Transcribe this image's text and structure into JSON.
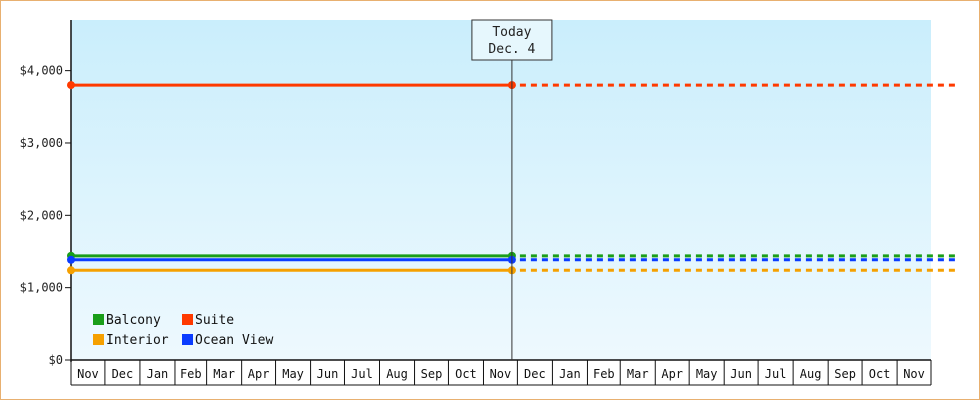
{
  "chart_data": {
    "type": "line",
    "title": "",
    "xlabel": "",
    "ylabel": "",
    "ylim": [
      0,
      4700
    ],
    "y_ticks": [
      0,
      1000,
      2000,
      3000,
      4000
    ],
    "y_tick_labels": [
      "$0",
      "$1,000",
      "$2,000",
      "$3,000",
      "$4,000"
    ],
    "x_months": [
      "Nov",
      "Dec",
      "Jan",
      "Feb",
      "Mar",
      "Apr",
      "May",
      "Jun",
      "Jul",
      "Aug",
      "Sep",
      "Oct",
      "Nov",
      "Dec",
      "Jan",
      "Feb",
      "Mar",
      "Apr",
      "May",
      "Jun",
      "Jul",
      "Aug",
      "Sep",
      "Oct",
      "Nov"
    ],
    "today": {
      "line1": "Today",
      "line2": "Dec. 4",
      "month_index": 13
    },
    "series": [
      {
        "name": "Suite",
        "color": "#ff3a00",
        "value": 3800
      },
      {
        "name": "Balcony",
        "color": "#1a9e1a",
        "value": 1440
      },
      {
        "name": "Ocean View",
        "color": "#0a3cff",
        "value": 1385
      },
      {
        "name": "Interior",
        "color": "#f5a000",
        "value": 1240
      }
    ],
    "legend": [
      {
        "name": "Balcony",
        "color": "#1a9e1a"
      },
      {
        "name": "Suite",
        "color": "#ff3a00"
      },
      {
        "name": "Interior",
        "color": "#f5a000"
      },
      {
        "name": "Ocean View",
        "color": "#0a3cff"
      }
    ],
    "legend_position": "bottom-left",
    "grid": false
  }
}
